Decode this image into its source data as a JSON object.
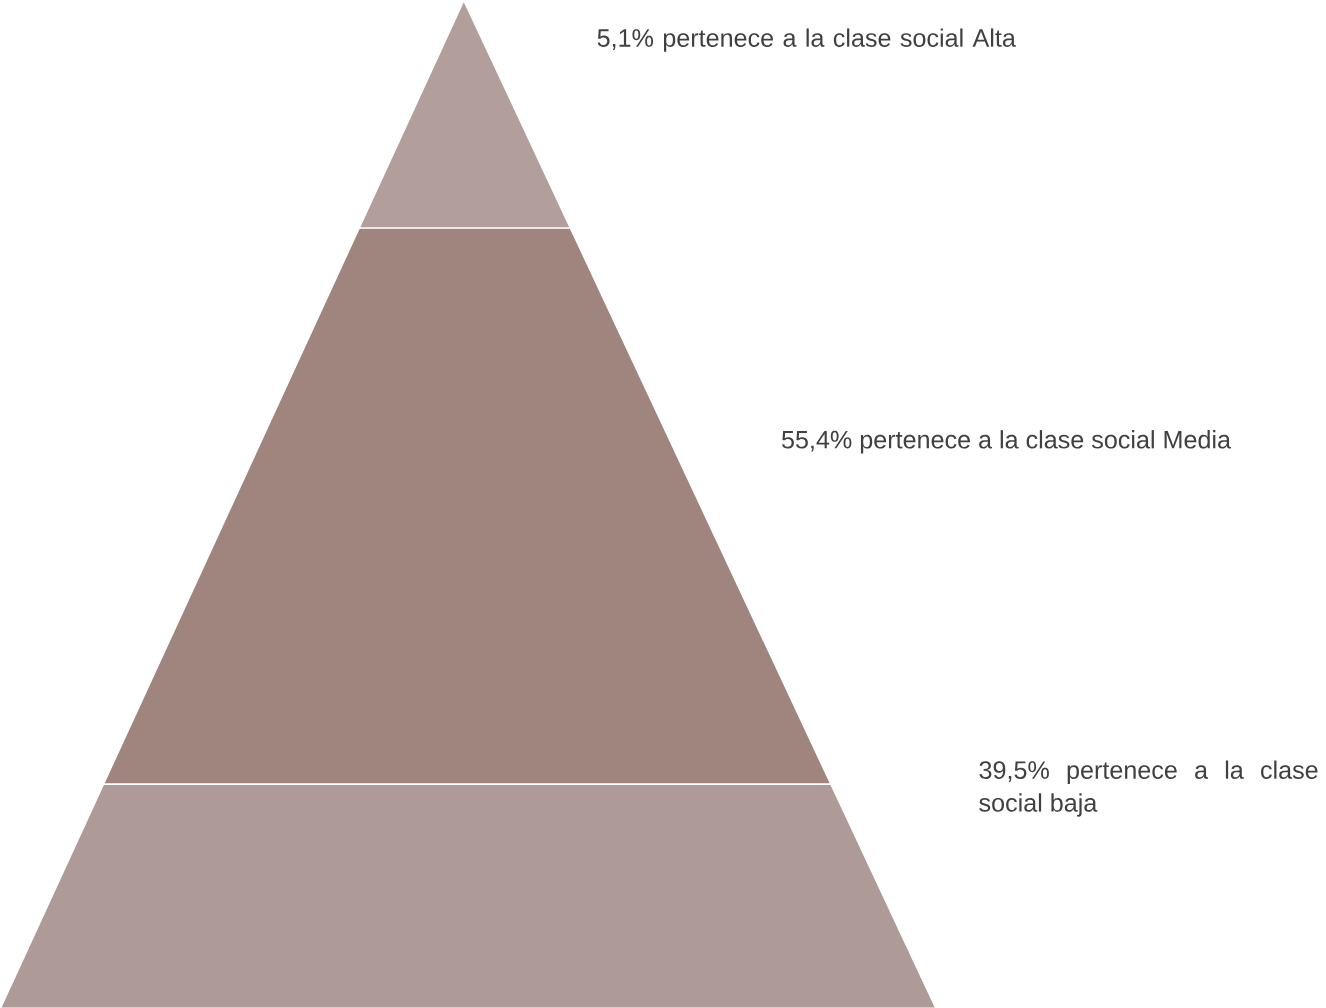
{
  "chart_data": {
    "type": "other",
    "categories": [
      "pertenece a la clase social Alta",
      "pertenece a la clase social Media",
      "pertenece a la clase social baja"
    ],
    "values": [
      5.1,
      55.4,
      39.5
    ],
    "value_labels": [
      "5,1%",
      "55,4%",
      "39,5%"
    ],
    "colors": [
      "#b29f9c",
      "#a0857f",
      "#ae9a97"
    ]
  }
}
